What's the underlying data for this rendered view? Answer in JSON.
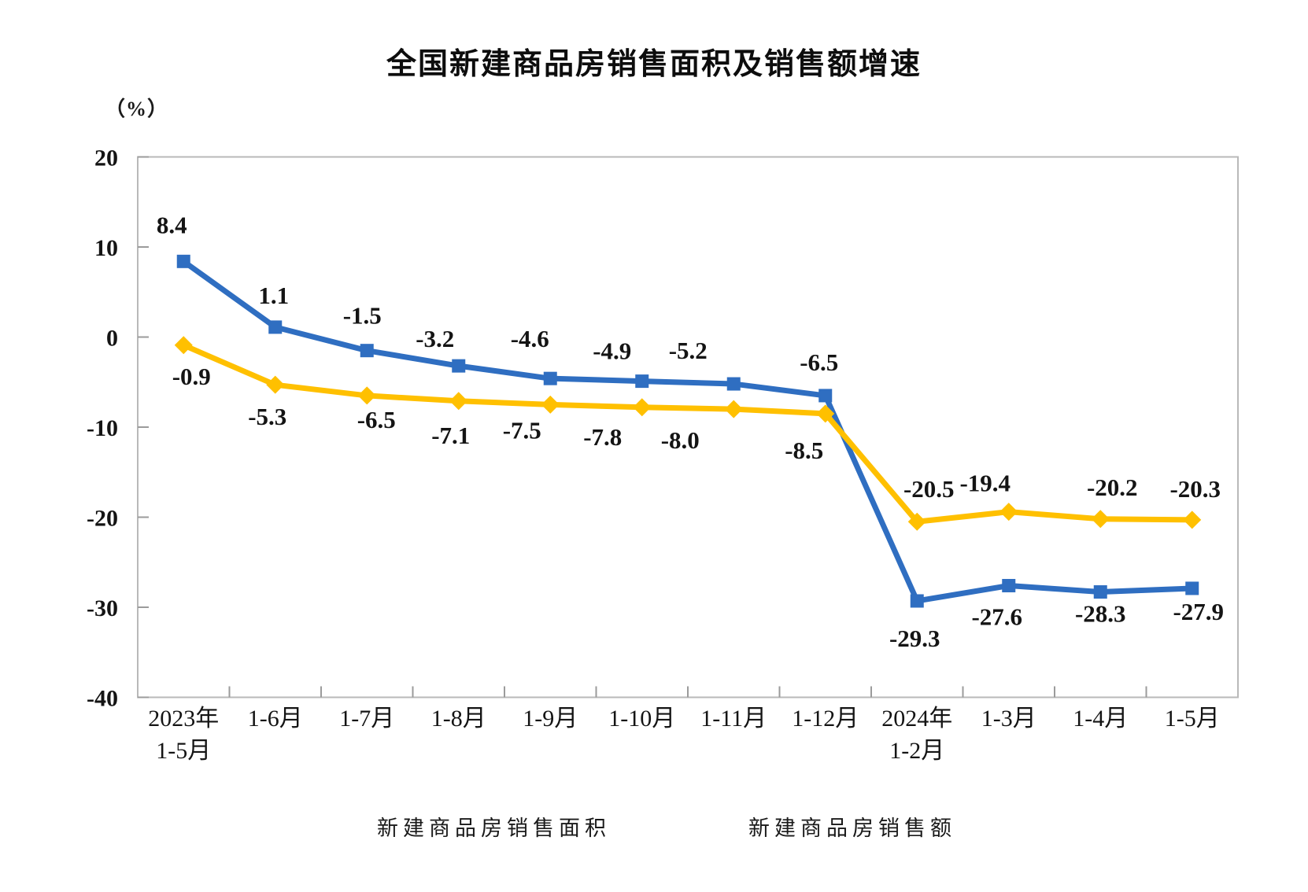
{
  "title": "全国新建商品房销售面积及销售额增速",
  "unit_label": "（%）",
  "chart_data": {
    "type": "line",
    "categories": [
      "2023年1-5月",
      "1-6月",
      "1-7月",
      "1-8月",
      "1-9月",
      "1-10月",
      "1-11月",
      "1-12月",
      "2024年1-2月",
      "1-3月",
      "1-4月",
      "1-5月"
    ],
    "x_tick_labels": [
      {
        "top": "2023年",
        "bottom": "1-5月"
      },
      {
        "top": "1-6月",
        "bottom": ""
      },
      {
        "top": "1-7月",
        "bottom": ""
      },
      {
        "top": "1-8月",
        "bottom": ""
      },
      {
        "top": "1-9月",
        "bottom": ""
      },
      {
        "top": "1-10月",
        "bottom": ""
      },
      {
        "top": "1-11月",
        "bottom": ""
      },
      {
        "top": "1-12月",
        "bottom": ""
      },
      {
        "top": "2024年",
        "bottom": "1-2月"
      },
      {
        "top": "1-3月",
        "bottom": ""
      },
      {
        "top": "1-4月",
        "bottom": ""
      },
      {
        "top": "1-5月",
        "bottom": ""
      }
    ],
    "series": [
      {
        "name": "新建商品房销售面积",
        "color": "#FFC000",
        "marker": "diamond",
        "values": [
          -0.9,
          -5.3,
          -6.5,
          -7.1,
          -7.5,
          -7.8,
          -8.0,
          -8.5,
          -20.5,
          -19.4,
          -20.2,
          -20.3
        ],
        "labels": [
          "-0.9",
          "-5.3",
          "-6.5",
          "-7.1",
          "-7.5",
          "-7.8",
          "-8.0",
          "-8.5",
          "-20.5",
          "-19.4",
          "-20.2",
          "-20.3"
        ]
      },
      {
        "name": "新建商品房销售额",
        "color": "#2F6EC1",
        "marker": "square",
        "values": [
          8.4,
          1.1,
          -1.5,
          -3.2,
          -4.6,
          -4.9,
          -5.2,
          -6.5,
          -29.3,
          -27.6,
          -28.3,
          -27.9
        ],
        "labels": [
          "8.4",
          "1.1",
          "-1.5",
          "-3.2",
          "-4.6",
          "-4.9",
          "-5.2",
          "-6.5",
          "-29.3",
          "-27.6",
          "-28.3",
          "-27.9"
        ]
      }
    ],
    "title": "全国新建商品房销售面积及销售额增速",
    "xlabel": "",
    "ylabel": "（%）",
    "ylim": [
      -40,
      20
    ],
    "y_ticks": [
      20,
      10,
      0,
      -10,
      -20,
      -30,
      -40
    ],
    "grid": false,
    "legend_position": "bottom"
  }
}
